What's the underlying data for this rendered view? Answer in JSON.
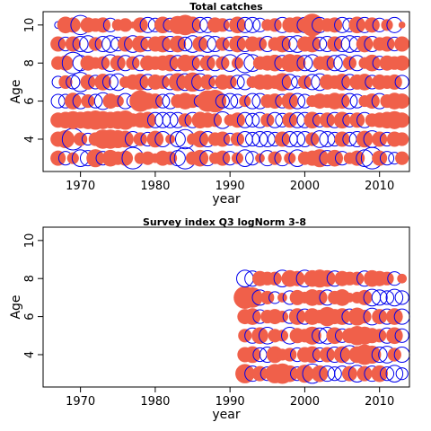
{
  "colors": {
    "positive": "#F0604A",
    "negative": "#0000EE",
    "axis": "#000000"
  },
  "chart_data": [
    {
      "type": "scatter",
      "subtype": "bubble-residuals",
      "title": "Total catches",
      "xlabel": "year",
      "ylabel": "Age",
      "xlim": [
        1965,
        2014
      ],
      "ylim": [
        2.3,
        10.7
      ],
      "xticks": [
        1970,
        1980,
        1990,
        2000,
        2010
      ],
      "yticks": [
        4,
        6,
        8,
        10
      ],
      "years": [
        1967,
        2013
      ],
      "ages": [
        3,
        10
      ],
      "series": [
        {
          "age": 3,
          "residuals": [
            0.5,
            -0.4,
            0.3,
            -0.6,
            -0.5,
            0.7,
            -0.4,
            0.6,
            0.4,
            0.5,
            -1.0,
            0.3,
            0.4,
            0.2,
            0.5,
            0.4,
            -0.5,
            -1.0,
            0.4,
            0.6,
            -0.5,
            0.3,
            0.5,
            -0.4,
            0.3,
            -0.6,
            -0.4,
            0.2,
            -0.5,
            0.4,
            -0.5,
            0.3,
            -0.6,
            0.4,
            0.5,
            0.7,
            -0.5,
            0.6,
            -0.4,
            0.3,
            0.5,
            -0.6,
            -1.0,
            0.5,
            -0.4,
            -0.3,
            0.4
          ]
        },
        {
          "age": 4,
          "residuals": [
            0.5,
            0.7,
            -1.0,
            0.4,
            -0.3,
            0.4,
            0.8,
            0.8,
            0.7,
            0.6,
            -0.5,
            0.4,
            -0.4,
            0.6,
            -0.5,
            0.2,
            -0.5,
            -0.8,
            0.3,
            0.6,
            -0.5,
            0.4,
            0.5,
            -0.3,
            0.4,
            -0.5,
            -0.4,
            -0.5,
            -0.5,
            -0.4,
            0.5,
            -0.5,
            -0.5,
            -0.5,
            0.4,
            -0.6,
            -0.5,
            -0.4,
            0.5,
            -0.4,
            -0.5,
            0.6,
            -0.6,
            0.5,
            -0.4,
            0.5,
            0.4
          ]
        },
        {
          "age": 5,
          "residuals": [
            0.5,
            0.6,
            0.7,
            0.6,
            0.7,
            0.8,
            0.7,
            0.6,
            0.7,
            0.8,
            0.4,
            0.5,
            0.6,
            -0.5,
            -0.5,
            -0.5,
            -0.5,
            0.4,
            -0.5,
            0.6,
            0.5,
            0.4,
            -0.6,
            0.3,
            0.5,
            -0.5,
            -0.4,
            -0.5,
            0.4,
            -0.5,
            -0.4,
            0.5,
            -0.5,
            -0.5,
            0.6,
            -0.4,
            0.5,
            -0.5,
            0.6,
            -0.4,
            0.5,
            -0.5,
            0.4,
            0.5,
            0.6,
            0.7,
            0.5
          ]
        },
        {
          "age": 6,
          "residuals": [
            -0.4,
            -0.4,
            0.6,
            -0.5,
            0.4,
            -0.4,
            -0.6,
            0.5,
            0.3,
            -0.5,
            -0.3,
            1.0,
            0.6,
            0.5,
            -0.4,
            -0.5,
            0.4,
            0.6,
            0.4,
            -0.3,
            1.0,
            1.1,
            -0.4,
            -0.5,
            -0.4,
            0.3,
            -0.5,
            -0.5,
            0.4,
            0.5,
            -0.4,
            0.6,
            -0.5,
            -0.4,
            0.3,
            0.5,
            0.4,
            0.6,
            0.5,
            -0.5,
            -0.4,
            0.3,
            0.5,
            -0.5,
            0.4,
            0.6,
            0.5
          ]
        },
        {
          "age": 7,
          "residuals": [
            -0.3,
            0.4,
            -0.4,
            -0.8,
            0.5,
            -0.4,
            0.6,
            -0.5,
            -0.6,
            0.3,
            0.5,
            0.6,
            -0.5,
            0.5,
            0.4,
            -0.5,
            0.7,
            -0.6,
            0.8,
            -0.6,
            0.5,
            -0.3,
            0.5,
            0.4,
            -0.4,
            -0.5,
            0.3,
            0.5,
            0.5,
            0.4,
            0.7,
            -0.5,
            -0.3,
            0.4,
            -0.5,
            -0.6,
            0.5,
            0.4,
            0.6,
            -0.5,
            0.5,
            0.6,
            -0.4,
            0.5,
            0.4,
            0.5,
            -0.4
          ]
        },
        {
          "age": 8,
          "residuals": [
            0.4,
            0.5,
            -1.0,
            -0.5,
            0.5,
            0.3,
            0.4,
            -0.6,
            0.5,
            -0.5,
            0.4,
            -0.5,
            0.5,
            0.4,
            0.5,
            0.6,
            -0.5,
            0.6,
            0.5,
            -0.5,
            0.5,
            -0.5,
            0.4,
            -0.6,
            0.3,
            -0.8,
            -0.6,
            0.4,
            0.5,
            0.6,
            -0.5,
            0.7,
            0.6,
            -0.5,
            -0.6,
            0.4,
            0.5,
            -0.5,
            -0.6,
            0.4,
            -0.5,
            0.3,
            0.6,
            -0.4,
            0.5,
            0.4,
            0.5
          ]
        },
        {
          "age": 9,
          "residuals": [
            0.5,
            -0.4,
            0.5,
            -0.5,
            -0.6,
            0.4,
            -0.5,
            -0.6,
            -0.4,
            0.5,
            -0.6,
            0.6,
            -0.4,
            0.5,
            0.6,
            -0.5,
            0.6,
            -0.4,
            -0.6,
            0.5,
            -0.6,
            -0.5,
            0.4,
            -0.4,
            0.6,
            -0.5,
            0.5,
            0.4,
            -0.5,
            0.4,
            0.6,
            -0.5,
            -0.6,
            0.5,
            0.6,
            -0.4,
            -0.5,
            0.5,
            -0.5,
            -0.6,
            -0.5,
            0.6,
            -0.5,
            0.4,
            0.5,
            -0.4,
            0.5
          ]
        },
        {
          "age": 10,
          "residuals": [
            -0.1,
            0.6,
            0.5,
            -0.8,
            0.5,
            0.4,
            0.5,
            -0.4,
            0.3,
            0.4,
            0.1,
            0.5,
            -0.5,
            -0.4,
            0.6,
            -0.4,
            0.7,
            0.9,
            0.6,
            -0.5,
            -0.5,
            0.5,
            0.4,
            -0.3,
            0.6,
            -0.5,
            -0.5,
            -0.4,
            0.3,
            0.4,
            -0.5,
            0.5,
            0.6,
            -0.5,
            1.1,
            -0.5,
            0.4,
            0.5,
            -0.5,
            -0.4,
            0.6,
            -0.5,
            0.5,
            -0.4,
            0.3,
            -0.5,
            0.1
          ]
        }
      ]
    },
    {
      "type": "scatter",
      "subtype": "bubble-residuals",
      "title": "Survey index Q3 logNorm 3-8",
      "xlabel": "year",
      "ylabel": "Age",
      "xlim": [
        1965,
        2014
      ],
      "ylim": [
        2.3,
        10.7
      ],
      "xticks": [
        1970,
        1980,
        1990,
        2000,
        2010
      ],
      "yticks": [
        4,
        6,
        8,
        10
      ],
      "years": [
        1992,
        2013
      ],
      "ages": [
        3,
        8
      ],
      "series": [
        {
          "age": 3,
          "residuals": [
            0.8,
            -0.5,
            0.5,
            -0.4,
            0.8,
            0.9,
            0.6,
            -0.4,
            0.7,
            -0.8,
            0.6,
            -0.5,
            -0.4,
            -0.5,
            0.5,
            -0.6,
            0.5,
            -0.5,
            0.6,
            -0.4,
            -0.6,
            -0.3
          ]
        },
        {
          "age": 4,
          "residuals": [
            0.5,
            0.6,
            -0.4,
            -0.5,
            0.6,
            0.3,
            0.4,
            -0.4,
            0.5,
            0.6,
            -0.4,
            0.5,
            -0.5,
            0.6,
            -0.7,
            0.6,
            0.9,
            0.7,
            -0.5,
            -0.6,
            0.4,
            -0.5
          ]
        },
        {
          "age": 5,
          "residuals": [
            0.4,
            -0.5,
            0.6,
            -0.6,
            0.4,
            0.3,
            -0.6,
            0.5,
            0.4,
            0.7,
            -0.5,
            -0.6,
            0.6,
            -0.4,
            0.5,
            0.8,
            0.7,
            0.5,
            0.4,
            -0.5,
            0.6,
            -0.4
          ]
        },
        {
          "age": 6,
          "residuals": [
            0.5,
            0.6,
            -0.4,
            0.4,
            0.5,
            0.3,
            -0.4,
            0.6,
            -0.5,
            0.6,
            0.4,
            0.8,
            0.5,
            0.6,
            -0.5,
            0.7,
            0.4,
            -0.6,
            0.5,
            -0.5,
            0.6,
            -0.5
          ]
        },
        {
          "age": 7,
          "residuals": [
            1.1,
            0.9,
            -0.5,
            0.4,
            -0.3,
            0.2,
            -0.4,
            0.5,
            0.3,
            0.6,
            0.5,
            -0.5,
            0.4,
            0.6,
            0.2,
            0.3,
            0.5,
            -0.6,
            -0.5,
            -0.4,
            -0.6,
            -0.4
          ]
        },
        {
          "age": 8,
          "residuals": [
            -0.6,
            -0.5,
            0.5,
            0.4,
            0.4,
            -0.6,
            0.6,
            0.5,
            -0.6,
            0.6,
            0.7,
            0.6,
            -0.5,
            0.5,
            0.4,
            0.4,
            -0.5,
            0.6,
            0.5,
            0.4,
            -0.4,
            0.2
          ]
        }
      ]
    }
  ]
}
